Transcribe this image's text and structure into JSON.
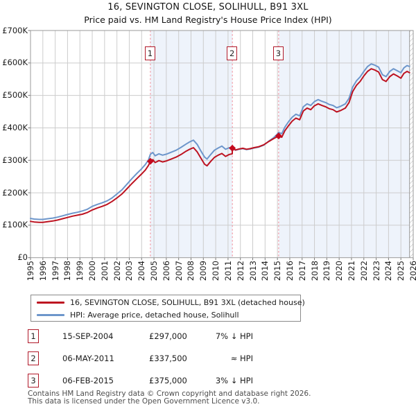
{
  "title": {
    "line1": "16, SEVINGTON CLOSE, SOLIHULL, B91 3XL",
    "line2": "Price paid vs. HM Land Registry's House Price Index (HPI)"
  },
  "chart_data": {
    "type": "line",
    "x_axis": {
      "years": [
        1995,
        1996,
        1997,
        1998,
        1999,
        2000,
        2001,
        2002,
        2003,
        2004,
        2005,
        2006,
        2007,
        2008,
        2009,
        2010,
        2011,
        2012,
        2013,
        2014,
        2015,
        2016,
        2017,
        2018,
        2019,
        2020,
        2021,
        2022,
        2023,
        2024,
        2025,
        2026
      ],
      "range": [
        1995,
        2026
      ]
    },
    "y_axis": {
      "tick_labels": [
        "£0",
        "£100K",
        "£200K",
        "£300K",
        "£400K",
        "£500K",
        "£600K",
        "£700K"
      ],
      "tick_values_k": [
        0,
        100,
        200,
        300,
        400,
        500,
        600,
        700
      ],
      "unit": "GBP (thousands)",
      "range_k": [
        0,
        700
      ]
    },
    "grid": true,
    "legend_position": "below",
    "series": [
      {
        "name": "16, SEVINGTON CLOSE, SOLIHULL, B91 3XL (detached house)",
        "color": "#bd1220",
        "points": [
          [
            1995.0,
            112
          ],
          [
            1995.3,
            110
          ],
          [
            1995.7,
            109
          ],
          [
            1996.0,
            109
          ],
          [
            1996.4,
            111
          ],
          [
            1996.8,
            113
          ],
          [
            1997.2,
            116
          ],
          [
            1997.6,
            120
          ],
          [
            1998.0,
            124
          ],
          [
            1998.4,
            128
          ],
          [
            1998.8,
            131
          ],
          [
            1999.2,
            134
          ],
          [
            1999.6,
            139
          ],
          [
            2000.0,
            147
          ],
          [
            2000.4,
            153
          ],
          [
            2000.8,
            158
          ],
          [
            2001.2,
            164
          ],
          [
            2001.6,
            173
          ],
          [
            2002.0,
            184
          ],
          [
            2002.4,
            196
          ],
          [
            2002.8,
            212
          ],
          [
            2003.2,
            228
          ],
          [
            2003.6,
            243
          ],
          [
            2004.0,
            258
          ],
          [
            2004.3,
            270
          ],
          [
            2004.55,
            284
          ],
          [
            2004.71,
            297
          ],
          [
            2004.9,
            302
          ],
          [
            2005.1,
            293
          ],
          [
            2005.4,
            299
          ],
          [
            2005.7,
            295
          ],
          [
            2006.0,
            298
          ],
          [
            2006.4,
            304
          ],
          [
            2006.8,
            310
          ],
          [
            2007.2,
            318
          ],
          [
            2007.6,
            328
          ],
          [
            2007.9,
            334
          ],
          [
            2008.2,
            339
          ],
          [
            2008.5,
            326
          ],
          [
            2008.8,
            307
          ],
          [
            2009.1,
            288
          ],
          [
            2009.3,
            283
          ],
          [
            2009.6,
            297
          ],
          [
            2009.9,
            309
          ],
          [
            2010.2,
            316
          ],
          [
            2010.5,
            321
          ],
          [
            2010.8,
            312
          ],
          [
            2011.1,
            318
          ],
          [
            2011.34,
            320
          ],
          [
            2011.35,
            337.5
          ],
          [
            2011.6,
            332
          ],
          [
            2011.9,
            335
          ],
          [
            2012.2,
            337
          ],
          [
            2012.5,
            334
          ],
          [
            2012.8,
            336
          ],
          [
            2013.1,
            339
          ],
          [
            2013.5,
            342
          ],
          [
            2013.9,
            348
          ],
          [
            2014.3,
            358
          ],
          [
            2014.7,
            367
          ],
          [
            2015.0,
            373
          ],
          [
            2015.1,
            375
          ],
          [
            2015.35,
            371
          ],
          [
            2015.6,
            391
          ],
          [
            2015.9,
            407
          ],
          [
            2016.2,
            421
          ],
          [
            2016.5,
            430
          ],
          [
            2016.8,
            425
          ],
          [
            2017.1,
            452
          ],
          [
            2017.4,
            461
          ],
          [
            2017.7,
            456
          ],
          [
            2018.0,
            468
          ],
          [
            2018.3,
            474
          ],
          [
            2018.6,
            469
          ],
          [
            2018.9,
            465
          ],
          [
            2019.2,
            459
          ],
          [
            2019.5,
            456
          ],
          [
            2019.8,
            449
          ],
          [
            2020.1,
            453
          ],
          [
            2020.5,
            461
          ],
          [
            2020.8,
            478
          ],
          [
            2021.1,
            512
          ],
          [
            2021.4,
            531
          ],
          [
            2021.7,
            543
          ],
          [
            2022.0,
            560
          ],
          [
            2022.3,
            574
          ],
          [
            2022.6,
            582
          ],
          [
            2022.9,
            578
          ],
          [
            2023.2,
            572
          ],
          [
            2023.5,
            549
          ],
          [
            2023.8,
            543
          ],
          [
            2024.1,
            558
          ],
          [
            2024.4,
            566
          ],
          [
            2024.7,
            560
          ],
          [
            2025.0,
            553
          ],
          [
            2025.25,
            568
          ],
          [
            2025.5,
            574
          ],
          [
            2025.7,
            570
          ]
        ]
      },
      {
        "name": "HPI: Average price, detached house, Solihull",
        "color": "#6d96cb",
        "points": [
          [
            1995.0,
            121
          ],
          [
            1995.3,
            119
          ],
          [
            1995.7,
            118
          ],
          [
            1996.0,
            118
          ],
          [
            1996.4,
            120
          ],
          [
            1996.8,
            122
          ],
          [
            1997.2,
            125
          ],
          [
            1997.6,
            129
          ],
          [
            1998.0,
            133
          ],
          [
            1998.4,
            137
          ],
          [
            1998.8,
            140
          ],
          [
            1999.2,
            144
          ],
          [
            1999.6,
            149
          ],
          [
            2000.0,
            158
          ],
          [
            2000.4,
            164
          ],
          [
            2000.8,
            169
          ],
          [
            2001.2,
            175
          ],
          [
            2001.6,
            184
          ],
          [
            2002.0,
            196
          ],
          [
            2002.4,
            209
          ],
          [
            2002.8,
            226
          ],
          [
            2003.2,
            243
          ],
          [
            2003.6,
            259
          ],
          [
            2004.0,
            274
          ],
          [
            2004.3,
            287
          ],
          [
            2004.55,
            301
          ],
          [
            2004.71,
            319
          ],
          [
            2004.9,
            324
          ],
          [
            2005.1,
            314
          ],
          [
            2005.4,
            320
          ],
          [
            2005.7,
            316
          ],
          [
            2006.0,
            319
          ],
          [
            2006.4,
            325
          ],
          [
            2006.8,
            331
          ],
          [
            2007.2,
            340
          ],
          [
            2007.6,
            350
          ],
          [
            2007.9,
            357
          ],
          [
            2008.2,
            362
          ],
          [
            2008.5,
            349
          ],
          [
            2008.8,
            329
          ],
          [
            2009.1,
            310
          ],
          [
            2009.3,
            304
          ],
          [
            2009.6,
            318
          ],
          [
            2009.9,
            331
          ],
          [
            2010.2,
            338
          ],
          [
            2010.5,
            344
          ],
          [
            2010.8,
            334
          ],
          [
            2011.1,
            339
          ],
          [
            2011.35,
            338
          ],
          [
            2011.6,
            331
          ],
          [
            2011.9,
            334
          ],
          [
            2012.2,
            336
          ],
          [
            2012.5,
            333
          ],
          [
            2012.8,
            335
          ],
          [
            2013.1,
            338
          ],
          [
            2013.5,
            341
          ],
          [
            2013.9,
            347
          ],
          [
            2014.3,
            359
          ],
          [
            2014.7,
            370
          ],
          [
            2015.0,
            381
          ],
          [
            2015.1,
            386
          ],
          [
            2015.35,
            382
          ],
          [
            2015.6,
            402
          ],
          [
            2015.9,
            419
          ],
          [
            2016.2,
            433
          ],
          [
            2016.5,
            442
          ],
          [
            2016.8,
            437
          ],
          [
            2017.1,
            465
          ],
          [
            2017.4,
            474
          ],
          [
            2017.7,
            469
          ],
          [
            2018.0,
            481
          ],
          [
            2018.3,
            487
          ],
          [
            2018.6,
            482
          ],
          [
            2018.9,
            478
          ],
          [
            2019.2,
            472
          ],
          [
            2019.5,
            469
          ],
          [
            2019.8,
            462
          ],
          [
            2020.1,
            466
          ],
          [
            2020.5,
            474
          ],
          [
            2020.8,
            491
          ],
          [
            2021.1,
            526
          ],
          [
            2021.4,
            545
          ],
          [
            2021.7,
            557
          ],
          [
            2022.0,
            574
          ],
          [
            2022.3,
            589
          ],
          [
            2022.6,
            597
          ],
          [
            2022.9,
            593
          ],
          [
            2023.2,
            587
          ],
          [
            2023.5,
            564
          ],
          [
            2023.8,
            558
          ],
          [
            2024.1,
            574
          ],
          [
            2024.4,
            582
          ],
          [
            2024.7,
            576
          ],
          [
            2025.0,
            570
          ],
          [
            2025.25,
            585
          ],
          [
            2025.5,
            592
          ],
          [
            2025.7,
            589
          ]
        ]
      }
    ],
    "sales": [
      {
        "label": "1",
        "date": "15-SEP-2004",
        "price": "£297,000",
        "vs_hpi": "7% ↓ HPI",
        "year": 2004.71,
        "value_k": 297
      },
      {
        "label": "2",
        "date": "06-MAY-2011",
        "price": "£337,500",
        "vs_hpi": "≈ HPI",
        "year": 2011.35,
        "value_k": 337.5
      },
      {
        "label": "3",
        "date": "06-FEB-2015",
        "price": "£375,000",
        "vs_hpi": "3% ↓ HPI",
        "year": 2015.1,
        "value_k": 375
      }
    ],
    "shaded_periods": [
      [
        2004.71,
        2011.35
      ],
      [
        2015.1,
        2025.7
      ]
    ],
    "hatch_start_year": 2025.7,
    "colors": {
      "property_line": "#bd1220",
      "hpi_line": "#6d96cb",
      "shade": "#eef3fb",
      "grid": "#cccccc",
      "plot_border": "#999999",
      "dashed_sale_line": "#f08a96",
      "marker_fill": "#c40a1e",
      "annotation_box_border": "#b01828",
      "tick": "#777777"
    }
  },
  "legend": {
    "items": [
      {
        "label": "16, SEVINGTON CLOSE, SOLIHULL, B91 3XL (detached house)",
        "color": "#bd1220"
      },
      {
        "label": "HPI: Average price, detached house, Solihull",
        "color": "#6d96cb"
      }
    ]
  },
  "footer": {
    "line1": "Contains HM Land Registry data © Crown copyright and database right 2026.",
    "line2": "This data is licensed under the Open Government Licence v3.0."
  }
}
